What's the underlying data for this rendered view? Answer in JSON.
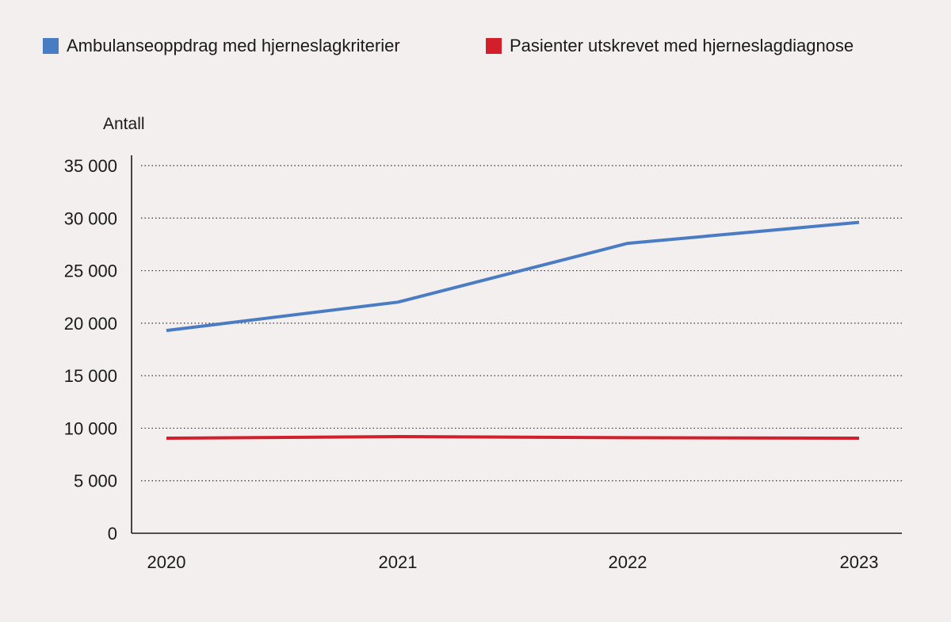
{
  "chart_data": {
    "type": "line",
    "title": "",
    "ylabel": "Antall",
    "xlabel": "",
    "categories": [
      "2020",
      "2021",
      "2022",
      "2023"
    ],
    "ylim": [
      0,
      35000
    ],
    "yticks": [
      0,
      5000,
      10000,
      15000,
      20000,
      25000,
      30000,
      35000
    ],
    "ytick_labels": [
      "0",
      "5 000",
      "10 000",
      "15 000",
      "20 000",
      "25 000",
      "30 000",
      "35 000"
    ],
    "grid": "horizontal-dotted",
    "legend_position": "top",
    "series": [
      {
        "name": "Ambulanseoppdrag med hjerneslagkriterier",
        "color": "#4a7cc4",
        "values": [
          19300,
          22000,
          27600,
          29600
        ]
      },
      {
        "name": "Pasienter utskrevet med hjerneslagdiagnose",
        "color": "#d21f2b",
        "values": [
          9050,
          9200,
          9100,
          9050
        ]
      }
    ]
  }
}
